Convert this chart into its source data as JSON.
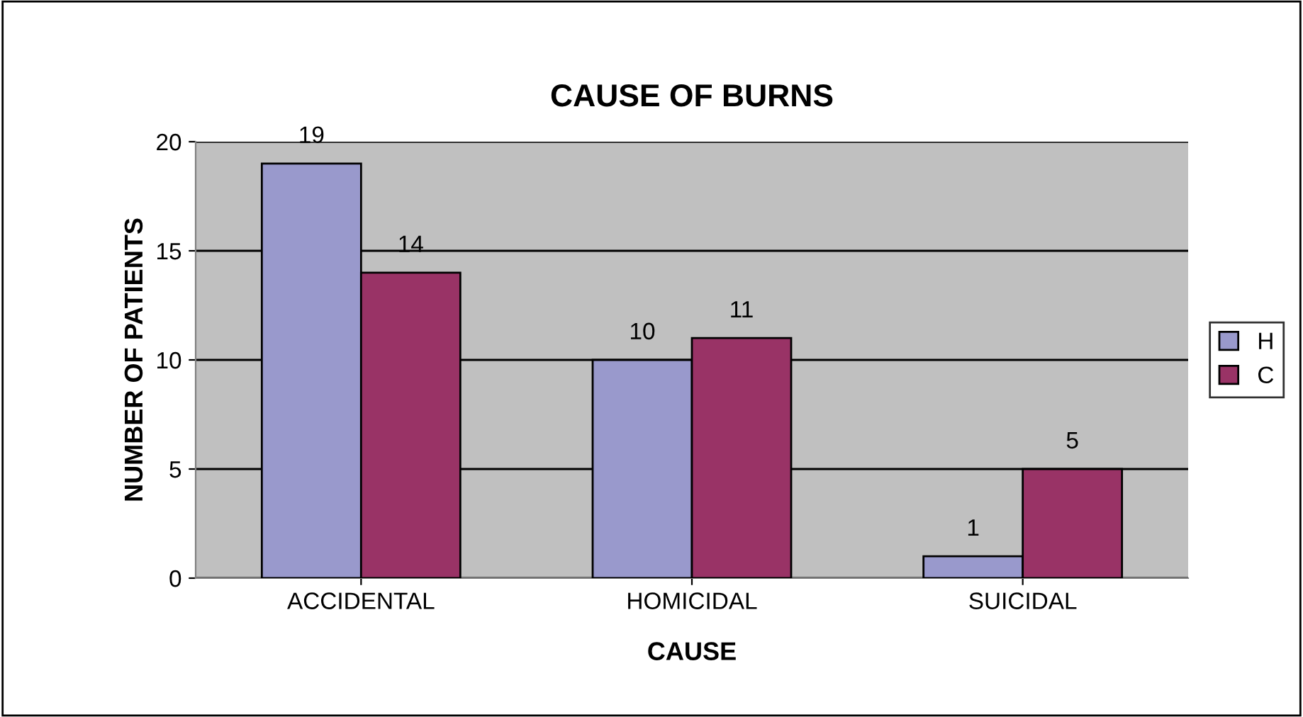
{
  "chart_data": {
    "type": "bar",
    "title": "CAUSE OF BURNS",
    "xlabel": "CAUSE",
    "ylabel": "NUMBER OF PATIENTS",
    "categories": [
      "ACCIDENTAL",
      "HOMICIDAL",
      "SUICIDAL"
    ],
    "series": [
      {
        "name": "H",
        "color": "#9999cc",
        "values": [
          19,
          10,
          1
        ]
      },
      {
        "name": "C",
        "color": "#993366",
        "values": [
          14,
          11,
          5
        ]
      }
    ],
    "ylim": [
      0,
      20
    ],
    "yticks": [
      0,
      5,
      10,
      15,
      20
    ],
    "grid": "y",
    "legend": "right",
    "data_labels": true
  }
}
